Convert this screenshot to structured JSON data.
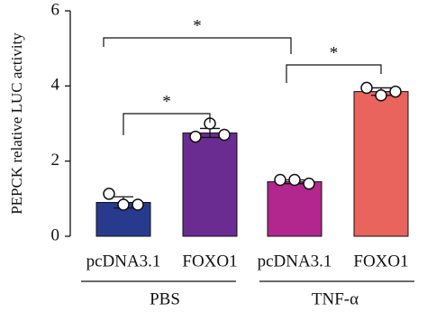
{
  "chart_data": {
    "type": "bar",
    "y_label": "PEPCK relative LUC activity",
    "categories": [
      "pcDNA3.1",
      "FOXO1",
      "pcDNA3.1",
      "FOXO1"
    ],
    "values": [
      0.9,
      2.75,
      1.45,
      3.85
    ],
    "errors": [
      0.15,
      0.12,
      0.05,
      0.1
    ],
    "points": [
      [
        1.13,
        0.84,
        0.84
      ],
      [
        2.65,
        3.0,
        2.7
      ],
      [
        1.5,
        1.5,
        1.4
      ],
      [
        3.95,
        3.75,
        3.85
      ]
    ],
    "colors": [
      "#283a8e",
      "#6a2c91",
      "#b1278e",
      "#e8645c"
    ],
    "groups": [
      "PBS",
      "TNF-α"
    ],
    "annotations": [
      "*",
      "*",
      "*"
    ],
    "ylim": [
      0,
      6
    ],
    "yticks": [
      0,
      2,
      4,
      6
    ]
  }
}
